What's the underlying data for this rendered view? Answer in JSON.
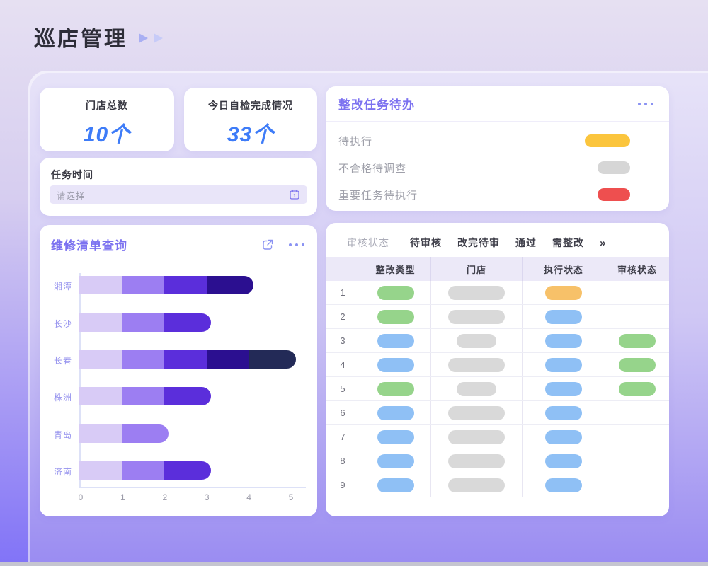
{
  "header": {
    "title": "巡店管理"
  },
  "stats": [
    {
      "label": "门店总数",
      "value": "10个"
    },
    {
      "label": "今日自检完成情况",
      "value": "33个"
    }
  ],
  "task_time": {
    "label": "任务时间",
    "placeholder": "请选择"
  },
  "repair": {
    "title": "维修清单查询"
  },
  "chart_data": {
    "type": "bar",
    "orientation": "horizontal-stacked",
    "title": "维修清单查询",
    "categories": [
      "湘潭",
      "长沙",
      "长春",
      "株洲",
      "青岛",
      "济南"
    ],
    "values": [
      4,
      3,
      5,
      3,
      2,
      3
    ],
    "segment_unit": 1,
    "segment_colors": [
      "#D8CBF6",
      "#9C7EF2",
      "#5B2EDB",
      "#2B0F90",
      "#232A57"
    ],
    "xticks": [
      "0",
      "1",
      "2",
      "3",
      "4",
      "5"
    ],
    "xlim": [
      0,
      5
    ],
    "grid": false,
    "legend": false
  },
  "todo": {
    "title": "整改任务待办",
    "items": [
      {
        "label": "待执行",
        "color": "#FBC53D",
        "size": "wide"
      },
      {
        "label": "不合格待调查",
        "color": "#D6D6D6",
        "size": "small"
      },
      {
        "label": "重要任务待执行",
        "color": "#EE4F4F",
        "size": "small"
      }
    ]
  },
  "table": {
    "filter_label": "审核状态",
    "filters": [
      "待审核",
      "改完待审",
      "通过",
      "需整改"
    ],
    "more_symbol": "»",
    "columns": [
      "整改类型",
      "门店",
      "执行状态",
      "审核状态"
    ],
    "pill_colors": {
      "green": "#96D48B",
      "blue": "#8FC0F5",
      "gray": "#D9D9D9",
      "orange": "#F7C169"
    },
    "rows": [
      {
        "num": "1",
        "type": "green",
        "store": "wide",
        "exec": "orange",
        "audit": null
      },
      {
        "num": "2",
        "type": "green",
        "store": "wide",
        "exec": "blue",
        "audit": null
      },
      {
        "num": "3",
        "type": "blue",
        "store": "short",
        "exec": "blue",
        "audit": "green"
      },
      {
        "num": "4",
        "type": "blue",
        "store": "wide",
        "exec": "blue",
        "audit": "green"
      },
      {
        "num": "5",
        "type": "green",
        "store": "short",
        "exec": "blue",
        "audit": "green"
      },
      {
        "num": "6",
        "type": "blue",
        "store": "wide",
        "exec": "blue",
        "audit": null
      },
      {
        "num": "7",
        "type": "blue",
        "store": "wide",
        "exec": "blue",
        "audit": null
      },
      {
        "num": "8",
        "type": "blue",
        "store": "wide",
        "exec": "blue",
        "audit": null
      },
      {
        "num": "9",
        "type": "blue",
        "store": "wide",
        "exec": "blue",
        "audit": null
      }
    ]
  },
  "colors": {
    "accent_purple": "#7C72F0",
    "stat_blue": "#3E7CF8",
    "play_icon_1": "#A9AFF3",
    "play_icon_2": "#C7CBF8"
  }
}
